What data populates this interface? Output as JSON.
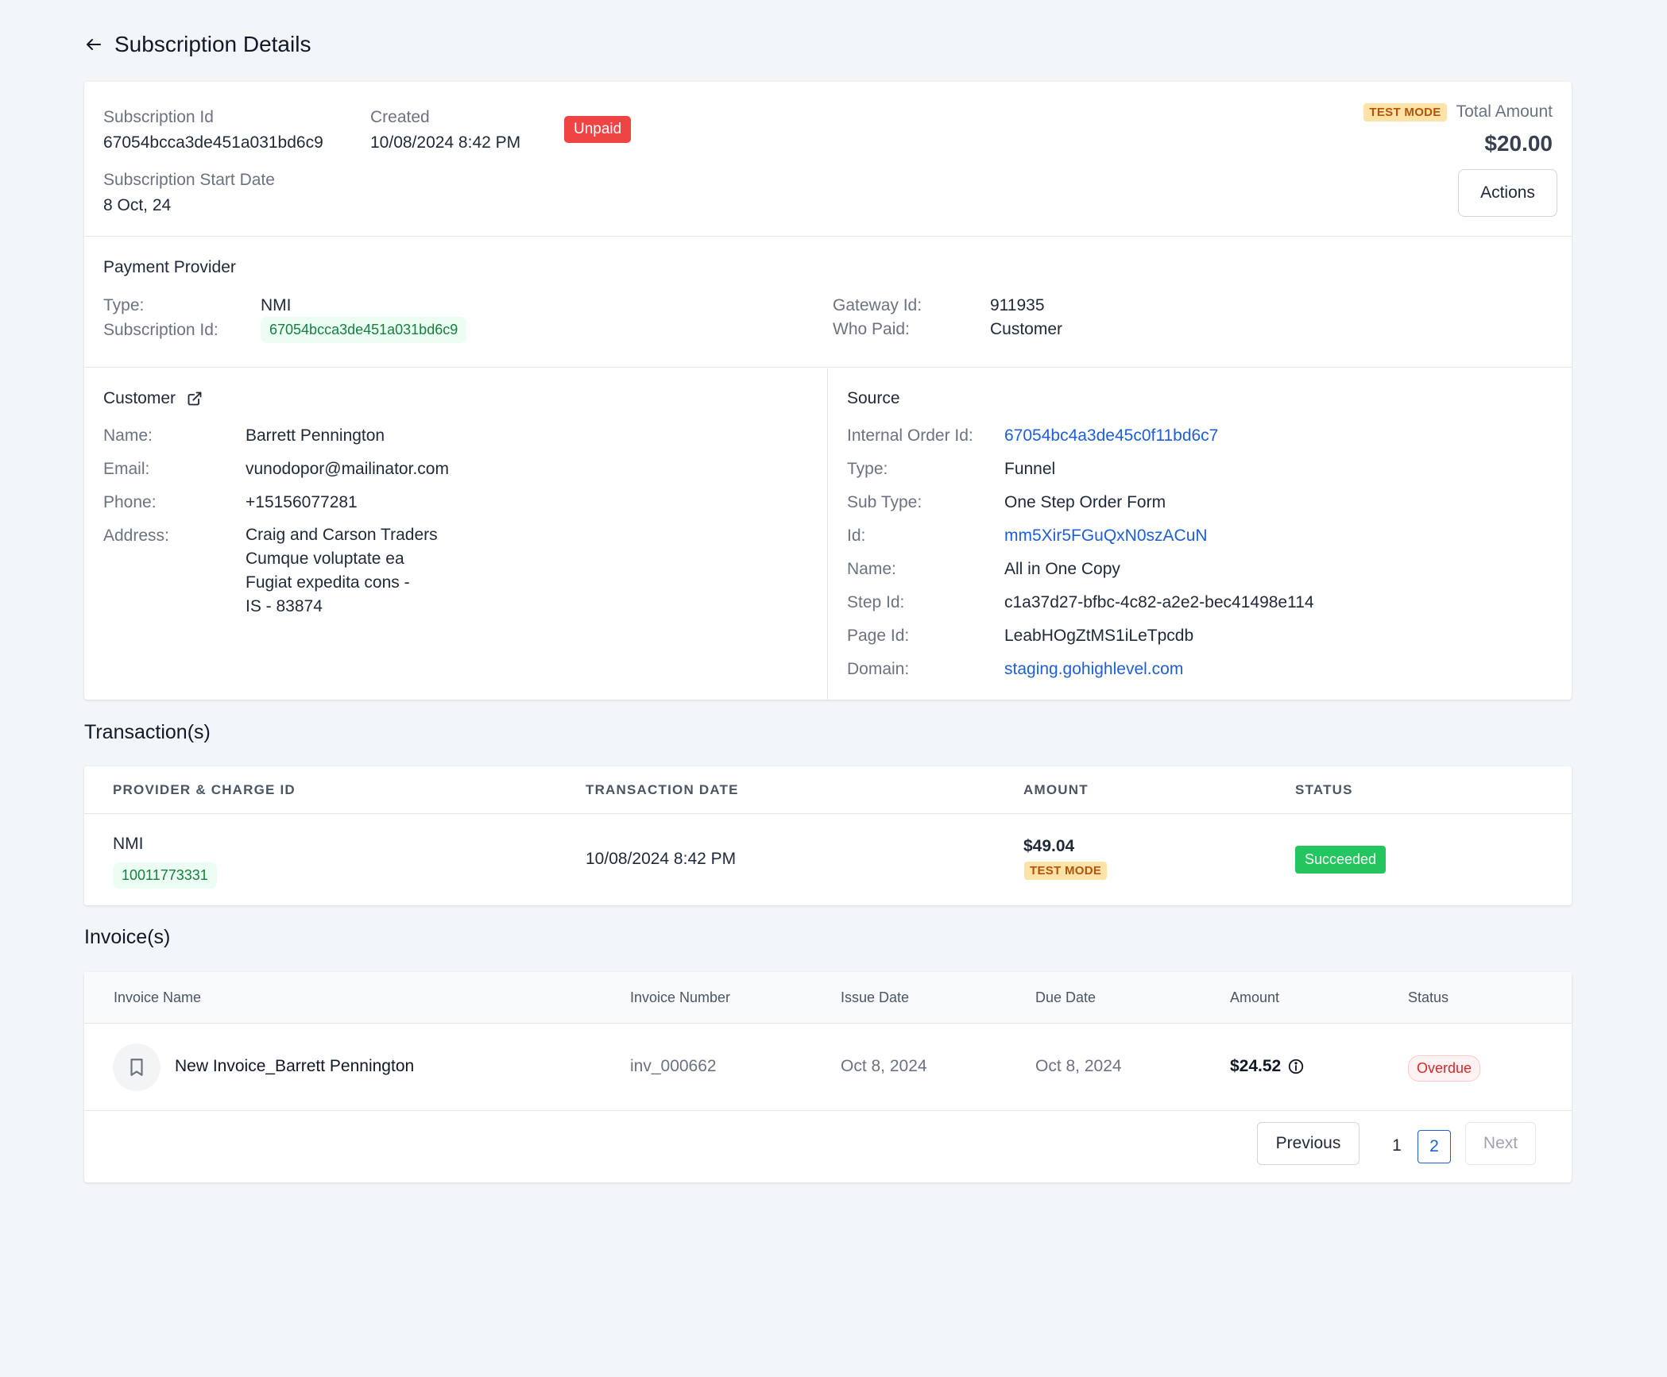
{
  "header": {
    "title": "Subscription Details"
  },
  "summary": {
    "subscription_id_label": "Subscription Id",
    "subscription_id": "67054bcca3de451a031bd6c9",
    "created_label": "Created",
    "created": "10/08/2024 8:42 PM",
    "status_badge": "Unpaid",
    "start_date_label": "Subscription Start Date",
    "start_date": "8 Oct, 24",
    "test_mode": "TEST MODE",
    "total_amount_label": "Total Amount",
    "total_amount": "$20.00",
    "actions_label": "Actions"
  },
  "payment_provider": {
    "title": "Payment Provider",
    "type_label": "Type:",
    "type": "NMI",
    "subscription_id_label": "Subscription Id:",
    "subscription_id": "67054bcca3de451a031bd6c9",
    "gateway_id_label": "Gateway Id:",
    "gateway_id": "911935",
    "who_paid_label": "Who Paid:",
    "who_paid": "Customer"
  },
  "customer": {
    "title": "Customer",
    "name_label": "Name:",
    "name": "Barrett Pennington",
    "email_label": "Email:",
    "email": "vunodopor@mailinator.com",
    "phone_label": "Phone:",
    "phone": "+15156077281",
    "address_label": "Address:",
    "address": [
      "Craig and Carson Traders",
      "Cumque voluptate ea",
      "Fugiat expedita cons -",
      "IS - 83874"
    ]
  },
  "source": {
    "title": "Source",
    "internal_order_id_label": "Internal Order Id:",
    "internal_order_id": "67054bc4a3de45c0f11bd6c7",
    "type_label": "Type:",
    "type": "Funnel",
    "sub_type_label": "Sub Type:",
    "sub_type": "One Step Order Form",
    "id_label": "Id:",
    "id": "mm5Xir5FGuQxN0szACuN",
    "name_label": "Name:",
    "name": "All in One Copy",
    "step_id_label": "Step Id:",
    "step_id": "c1a37d27-bfbc-4c82-a2e2-bec41498e114",
    "page_id_label": "Page Id:",
    "page_id": "LeabHOgZtMS1iLeTpcdb",
    "domain_label": "Domain:",
    "domain": "staging.gohighlevel.com"
  },
  "transactions": {
    "title": "Transaction(s)",
    "columns": [
      "PROVIDER & CHARGE ID",
      "TRANSACTION DATE",
      "AMOUNT",
      "STATUS"
    ],
    "rows": [
      {
        "provider": "NMI",
        "charge_id": "10011773331",
        "date": "10/08/2024 8:42 PM",
        "amount": "$49.04",
        "mode": "TEST MODE",
        "status": "Succeeded"
      }
    ]
  },
  "invoices": {
    "title": "Invoice(s)",
    "columns": [
      "Invoice Name",
      "Invoice Number",
      "Issue Date",
      "Due Date",
      "Amount",
      "Status"
    ],
    "rows": [
      {
        "name": "New Invoice_Barrett Pennington",
        "number": "inv_000662",
        "issue_date": "Oct 8, 2024",
        "due_date": "Oct 8, 2024",
        "amount": "$24.52",
        "status": "Overdue"
      }
    ],
    "pagination": {
      "previous": "Previous",
      "pages": [
        "1",
        "2"
      ],
      "current": "2",
      "next": "Next"
    }
  },
  "colors": {
    "accent": "#1d5fd6",
    "unpaid": "#ef4444",
    "succeeded": "#22c55e",
    "overdue": "#dc2626",
    "test_mode_bg": "#fde3a8"
  }
}
